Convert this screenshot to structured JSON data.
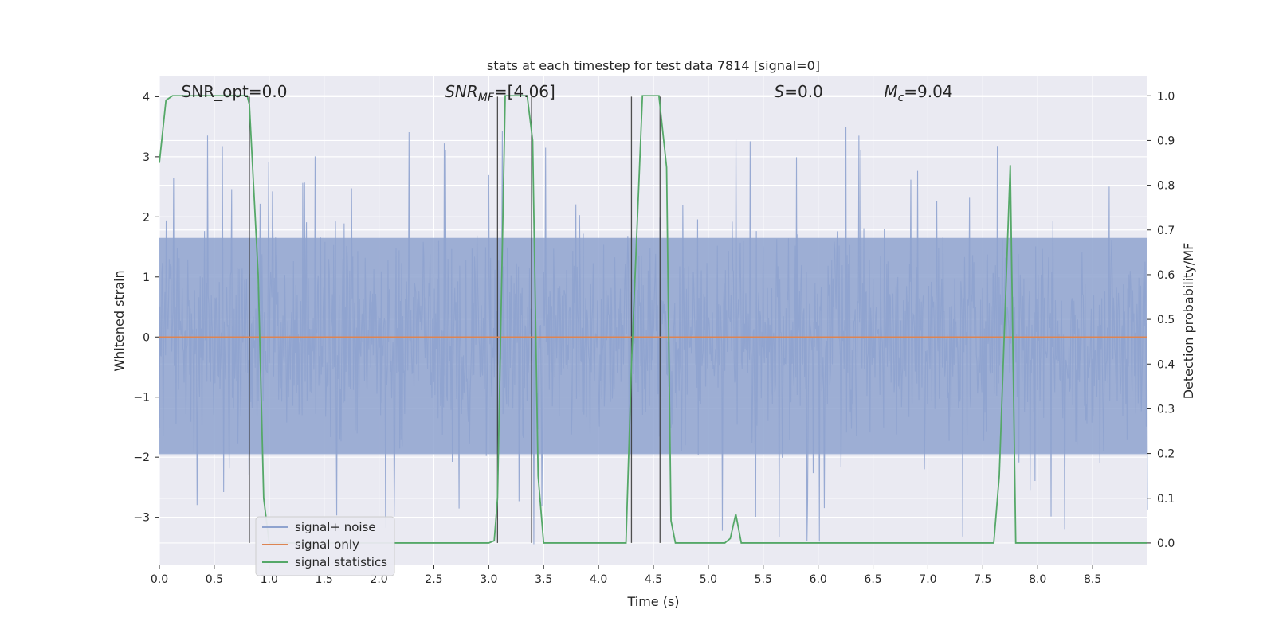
{
  "chart_data": {
    "type": "line",
    "title": "stats at each timestep for test data 7814 [signal=0]",
    "xlabel": "Time (s)",
    "ylabel_left": "Whitened strain",
    "ylabel_right": "Detection probability/MF",
    "xlim": [
      0,
      9.0
    ],
    "ylim_left": [
      -3.8,
      4.35
    ],
    "ylim_right": [
      -0.05,
      1.045
    ],
    "xticks": [
      "0.0",
      "0.5",
      "1.0",
      "1.5",
      "2.0",
      "2.5",
      "3.0",
      "3.5",
      "4.0",
      "4.5",
      "5.0",
      "5.5",
      "6.0",
      "6.5",
      "7.0",
      "7.5",
      "8.0",
      "8.5"
    ],
    "yticks_left": [
      "−3",
      "−2",
      "−1",
      "0",
      "1",
      "2",
      "3",
      "4"
    ],
    "yticks_right": [
      "0.0",
      "0.1",
      "0.2",
      "0.3",
      "0.4",
      "0.5",
      "0.6",
      "0.7",
      "0.8",
      "0.9",
      "1.0"
    ],
    "annotations": [
      {
        "label": "SNR_opt=0.0",
        "x": 0.2
      },
      {
        "label_main": "SNR",
        "label_sub": "MF",
        "label_tail": "=[4.06]",
        "x": 2.6
      },
      {
        "label_main": "S",
        "label_tail": "=0.0",
        "x": 5.6
      },
      {
        "label_main": "M",
        "label_sub": "c",
        "label_tail": "=9.04",
        "x": 6.6
      }
    ],
    "legend": {
      "position": "lower-left",
      "entries": [
        "signal+ noise",
        "signal only",
        "signal statistics"
      ]
    },
    "series": [
      {
        "name": "signal+ noise",
        "color": "#8fa3cf",
        "envelope": {
          "typical_high": 1.65,
          "typical_low": -1.95,
          "seed": 7814,
          "n_points": 1600
        }
      },
      {
        "name": "signal only",
        "color": "#dd8452",
        "constant_value": 0.0
      },
      {
        "name": "signal statistics",
        "color": "#55a868",
        "axis": "right",
        "x": [
          0.0,
          0.06,
          0.12,
          0.5,
          0.8,
          0.82,
          0.9,
          0.95,
          1.0,
          3.0,
          3.05,
          3.08,
          3.15,
          3.35,
          3.4,
          3.45,
          3.5,
          4.25,
          4.3,
          4.4,
          4.55,
          4.62,
          4.66,
          4.7,
          4.75,
          5.15,
          5.2,
          5.25,
          5.3,
          5.5,
          7.6,
          7.65,
          7.75,
          7.8,
          8.2,
          9.0
        ],
        "y": [
          0.85,
          0.99,
          1.0,
          1.0,
          1.0,
          0.98,
          0.6,
          0.1,
          0.0,
          0.0,
          0.005,
          0.1,
          1.0,
          1.0,
          0.9,
          0.15,
          0.0,
          0.0,
          0.4,
          1.0,
          1.0,
          0.84,
          0.05,
          0.0,
          0.0,
          0.0,
          0.01,
          0.065,
          0.0,
          0.0,
          0.0,
          0.15,
          0.845,
          0.0,
          0.0,
          0.0
        ]
      }
    ],
    "vertical_markers": [
      0.82,
      3.08,
      3.39,
      4.3,
      4.56
    ],
    "grid": true,
    "style": {
      "axes_bg": "#eaeaf2",
      "grid_color": "#ffffff",
      "text_color": "#262626",
      "marker_color": "#333333"
    }
  }
}
